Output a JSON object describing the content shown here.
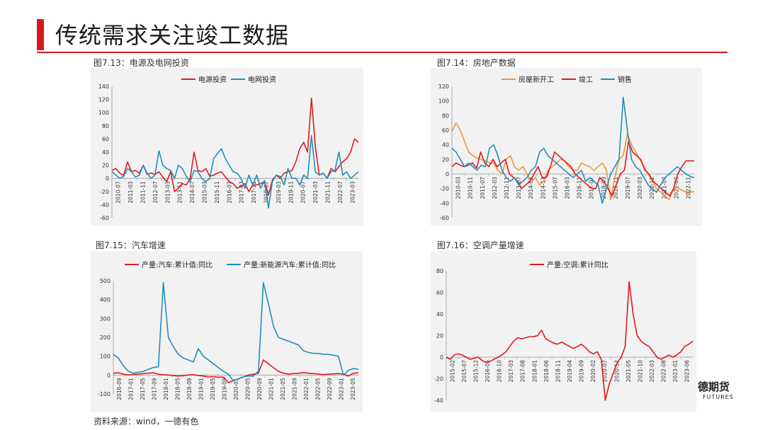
{
  "page": {
    "title": "传统需求关注竣工数据",
    "source": "资料来源：wind，一德有色",
    "logo_text": "德期货",
    "logo_sub": "FUTURES"
  },
  "chart_data": [
    {
      "id": "c1",
      "caption": "图7.13：电源及电网投资",
      "type": "line",
      "ylim": [
        -60,
        140
      ],
      "yticks": [
        -60,
        -40,
        -20,
        0,
        20,
        40,
        60,
        80,
        100,
        120,
        140
      ],
      "xticks": [
        "2010-07",
        "2011-03",
        "2011-11",
        "2012-07",
        "2013-03",
        "2013-11",
        "2014-07",
        "2015-03",
        "2015-11",
        "2016-07",
        "2017-03",
        "2017-11",
        "2018-07",
        "2019-03",
        "2019-11",
        "2020-07",
        "2021-03",
        "2021-11",
        "2022-07",
        "2023-03"
      ],
      "legend_position": "top-center",
      "grid": false,
      "series": [
        {
          "name": "电源投资",
          "color": "#e3191c",
          "values": [
            12,
            15,
            8,
            5,
            25,
            10,
            12,
            8,
            20,
            6,
            8,
            6,
            10,
            2,
            -5,
            10,
            -20,
            -15,
            -8,
            -10,
            0,
            40,
            12,
            10,
            15,
            3,
            5,
            8,
            10,
            2,
            -5,
            -8,
            -15,
            -12,
            -8,
            -20,
            -10,
            -10,
            -8,
            -5,
            -25,
            -3,
            5,
            0,
            8,
            10,
            12,
            25,
            45,
            55,
            40,
            122,
            48,
            5,
            8,
            0,
            15,
            10,
            18,
            25,
            30,
            40,
            60,
            55
          ]
        },
        {
          "name": "电网投资",
          "color": "#1f8fbd",
          "values": [
            10,
            5,
            0,
            3,
            15,
            10,
            2,
            5,
            20,
            8,
            0,
            5,
            42,
            20,
            15,
            12,
            0,
            20,
            15,
            3,
            -5,
            12,
            10,
            0,
            -5,
            0,
            30,
            38,
            45,
            30,
            20,
            10,
            8,
            0,
            -15,
            5,
            -10,
            5,
            -15,
            -3,
            -45,
            -5,
            5,
            3,
            -10,
            15,
            0,
            0,
            -10,
            5,
            0,
            65,
            10,
            5,
            8,
            0,
            10,
            12,
            40,
            5,
            10,
            0,
            5,
            10
          ]
        }
      ]
    },
    {
      "id": "c2",
      "caption": "图7.14：房地产数据",
      "type": "line",
      "ylim": [
        -60,
        120
      ],
      "yticks": [
        -60,
        -40,
        -20,
        0,
        20,
        40,
        60,
        80,
        100,
        120
      ],
      "xticks": [
        "2010-03",
        "2010-11",
        "2011-07",
        "2012-03",
        "2012-11",
        "2013-07",
        "2014-03",
        "2014-11",
        "2015-07",
        "2016-03",
        "2016-11",
        "2017-07",
        "2018-03",
        "2018-11",
        "2019-07",
        "2020-03",
        "2020-11",
        "2021-07",
        "2022-03",
        "2022-11"
      ],
      "legend_position": "top-center",
      "grid": false,
      "series": [
        {
          "name": "房屋新开工",
          "color": "#f0953a",
          "values": [
            58,
            70,
            60,
            45,
            30,
            25,
            22,
            20,
            18,
            15,
            15,
            5,
            0,
            20,
            25,
            10,
            5,
            10,
            0,
            -10,
            -5,
            -15,
            -10,
            5,
            10,
            15,
            20,
            18,
            10,
            5,
            5,
            15,
            12,
            10,
            5,
            10,
            15,
            5,
            -35,
            -5,
            20,
            25,
            55,
            40,
            30,
            20,
            10,
            0,
            -10,
            -20,
            -25,
            -30,
            -35,
            -22,
            -18,
            -22,
            -25,
            -25,
            -24
          ]
        },
        {
          "name": "竣工",
          "color": "#e3191c",
          "values": [
            10,
            15,
            12,
            10,
            12,
            15,
            8,
            30,
            15,
            10,
            20,
            10,
            15,
            20,
            0,
            -5,
            -10,
            -20,
            -15,
            -10,
            0,
            10,
            -5,
            -5,
            10,
            30,
            25,
            20,
            15,
            10,
            0,
            -5,
            -10,
            -15,
            -20,
            -20,
            -5,
            -10,
            -20,
            -30,
            -15,
            0,
            5,
            45,
            30,
            25,
            20,
            5,
            0,
            -10,
            -15,
            -20,
            -25,
            -30,
            -20,
            0,
            10,
            18,
            18,
            18
          ]
        },
        {
          "name": "销售",
          "color": "#1f8fbd",
          "values": [
            35,
            30,
            20,
            10,
            15,
            10,
            5,
            12,
            10,
            35,
            40,
            25,
            5,
            -5,
            -10,
            -5,
            -15,
            -10,
            -5,
            5,
            10,
            30,
            35,
            25,
            20,
            15,
            10,
            5,
            0,
            -5,
            0,
            5,
            -10,
            -5,
            -10,
            -15,
            -40,
            -20,
            0,
            10,
            20,
            105,
            60,
            20,
            10,
            5,
            -5,
            -15,
            -20,
            -25,
            -15,
            -5,
            0,
            5,
            10,
            5,
            0,
            -3,
            -5
          ]
        }
      ]
    },
    {
      "id": "c3",
      "caption": "图7.15：汽车增速",
      "type": "line",
      "ylim": [
        -100,
        500
      ],
      "yticks": [
        -100,
        0,
        100,
        200,
        300,
        400,
        500
      ],
      "xticks": [
        "2016-09",
        "2017-01",
        "2017-05",
        "2017-09",
        "2018-01",
        "2018-05",
        "2018-09",
        "2019-01",
        "2019-05",
        "2019-09",
        "2020-01",
        "2020-05",
        "2020-09",
        "2021-01",
        "2021-05",
        "2021-09",
        "2022-01",
        "2022-05",
        "2022-09",
        "2023-01",
        "2023-05"
      ],
      "legend_position": "top-center",
      "grid": false,
      "series": [
        {
          "name": "产量:汽车:累计值:同比",
          "color": "#e3191c",
          "values": [
            10,
            12,
            5,
            0,
            3,
            5,
            8,
            10,
            12,
            5,
            2,
            0,
            -3,
            -5,
            -3,
            0,
            2,
            -2,
            -5,
            -10,
            -8,
            -12,
            -10,
            -40,
            -30,
            -20,
            -10,
            0,
            5,
            10,
            80,
            60,
            40,
            20,
            10,
            5,
            8,
            10,
            12,
            10,
            8,
            5,
            3,
            5,
            6,
            8,
            5,
            -5,
            10,
            12
          ]
        },
        {
          "name": "产量:新能源汽车:累计值:同比",
          "color": "#1f8fbd",
          "values": [
            110,
            90,
            50,
            20,
            10,
            15,
            20,
            30,
            40,
            45,
            490,
            200,
            150,
            110,
            90,
            80,
            70,
            140,
            100,
            80,
            60,
            40,
            20,
            5,
            -30,
            -20,
            -10,
            -5,
            -5,
            20,
            490,
            380,
            260,
            200,
            190,
            180,
            170,
            160,
            130,
            120,
            115,
            115,
            110,
            110,
            105,
            100,
            0,
            25,
            35,
            30
          ]
        }
      ]
    },
    {
      "id": "c4",
      "caption": "图7.16：空调产量增速",
      "type": "line",
      "ylim": [
        -40,
        80
      ],
      "yticks": [
        -40,
        -20,
        0,
        20,
        40,
        60,
        80
      ],
      "xticks": [
        "2015-02",
        "2015-07",
        "2015-12",
        "2016-05",
        "2016-10",
        "2017-03",
        "2017-08",
        "2018-01",
        "2018-06",
        "2018-11",
        "2019-04",
        "2019-09",
        "2020-02",
        "2020-07",
        "2020-12",
        "2021-05",
        "2021-10",
        "2022-03",
        "2022-08",
        "2023-01",
        "2023-06"
      ],
      "legend_position": "top-center",
      "grid": false,
      "series": [
        {
          "name": "产量:空调:累计同比",
          "color": "#e3191c",
          "values": [
            0,
            -2,
            2,
            3,
            2,
            0,
            -2,
            -1,
            0,
            -3,
            -5,
            -4,
            -2,
            0,
            2,
            5,
            10,
            15,
            18,
            17,
            18,
            19,
            19,
            20,
            25,
            17,
            15,
            13,
            12,
            14,
            12,
            10,
            8,
            10,
            12,
            9,
            5,
            3,
            5,
            -2,
            -40,
            -25,
            -15,
            -5,
            0,
            10,
            70,
            40,
            20,
            15,
            12,
            10,
            5,
            0,
            -2,
            0,
            2,
            0,
            2,
            5,
            10,
            12,
            15
          ]
        }
      ]
    }
  ]
}
